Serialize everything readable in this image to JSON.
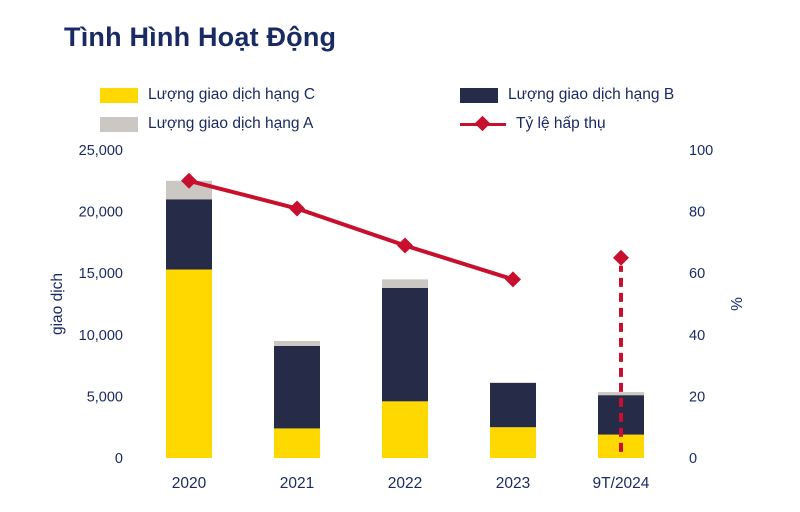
{
  "title": "Tình Hình Hoạt Động",
  "colors": {
    "navy_text": "#1A2B63",
    "bar_c": "#FFD800",
    "bar_b": "#262B47",
    "bar_a": "#CBC7C2",
    "line_red": "#C8102E",
    "background": "#FFFFFF"
  },
  "legend": [
    {
      "label": "Lượng giao dịch hạng C",
      "swatch": "bar_c",
      "type": "square"
    },
    {
      "label": "Lượng giao dịch hạng B",
      "swatch": "bar_b",
      "type": "square"
    },
    {
      "label": "Lượng giao dịch hạng A",
      "swatch": "bar_a",
      "type": "square"
    },
    {
      "label": "Tỷ lệ hấp thụ",
      "swatch": "line_red",
      "type": "line-diamond"
    }
  ],
  "chart_data": {
    "type": "bar",
    "subtype": "stacked-bars-with-line",
    "title": "Tình Hình Hoạt Động",
    "categories": [
      "2020",
      "2021",
      "2022",
      "2023",
      "9T/2024"
    ],
    "series": [
      {
        "name": "Lượng giao dịch hạng C",
        "color_key": "bar_c",
        "values": [
          15300,
          2400,
          4600,
          2500,
          1900
        ]
      },
      {
        "name": "Lượng giao dịch hạng B",
        "color_key": "bar_b",
        "values": [
          5700,
          6700,
          9200,
          3600,
          3200
        ]
      },
      {
        "name": "Lượng giao dịch hạng A",
        "color_key": "bar_a",
        "values": [
          1500,
          400,
          700,
          0,
          250
        ]
      }
    ],
    "line_series": {
      "name": "Tỷ lệ hấp thụ",
      "color_key": "line_red",
      "values": [
        90,
        81,
        69,
        58,
        65
      ],
      "solid_through_index": 3,
      "dashed_vertical_at_index": 4,
      "dashed_from_value": 2
    },
    "ylabel_left": "giao dịch",
    "ylabel_right": "%",
    "ylim_left": [
      0,
      25000
    ],
    "ylim_right": [
      0,
      100
    ],
    "y_left_ticks": [
      "0",
      "5,000",
      "10,000",
      "15,000",
      "20,000",
      "25,000"
    ],
    "y_right_ticks": [
      "0",
      "20",
      "40",
      "60",
      "80",
      "100"
    ],
    "grid": false,
    "legend_position": "top"
  }
}
